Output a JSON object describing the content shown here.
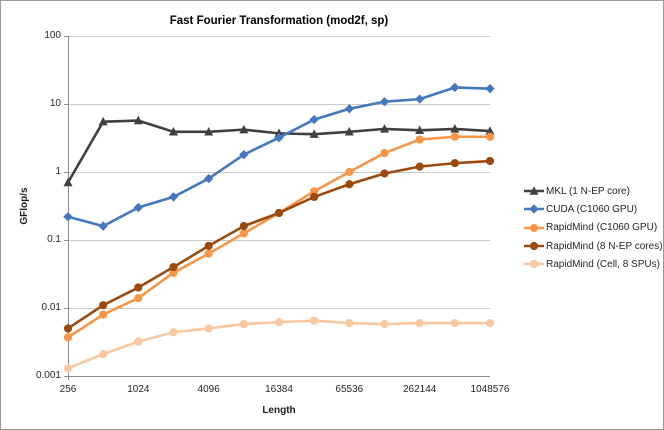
{
  "chart_data": {
    "type": "line",
    "title": "Fast Fourier Transformation (mod2f, sp)",
    "xlabel": "Length",
    "ylabel": "GFlop/s",
    "x_scale": "log2",
    "y_scale": "log10",
    "ylim": [
      0.001,
      100
    ],
    "grid": "horizontal",
    "legend_position": "right",
    "x": [
      256,
      512,
      1024,
      2048,
      4096,
      8192,
      16384,
      32768,
      65536,
      131072,
      262144,
      524288,
      1048576
    ],
    "xtick_labels": [
      "256",
      "1024",
      "4096",
      "16384",
      "65536",
      "262144",
      "1048576"
    ],
    "ytick_labels": [
      "100",
      "10",
      "1",
      "0.1",
      "0.01",
      "0.001"
    ],
    "series": [
      {
        "name": "MKL (1 N-EP core)",
        "color": "#404040",
        "marker": "triangle",
        "values": [
          0.7,
          5.5,
          5.7,
          3.9,
          3.9,
          4.2,
          3.7,
          3.6,
          3.9,
          4.3,
          4.1,
          4.3,
          4.0
        ]
      },
      {
        "name": "CUDA (C1060 GPU)",
        "color": "#4678be",
        "marker": "diamond",
        "values": [
          0.22,
          0.16,
          0.3,
          0.43,
          0.8,
          1.8,
          3.2,
          5.9,
          8.5,
          10.8,
          11.8,
          17.5,
          16.8
        ]
      },
      {
        "name": "RapidMind (C1060 GPU)",
        "color": "#f79646",
        "marker": "circle",
        "values": [
          0.0037,
          0.008,
          0.014,
          0.033,
          0.063,
          0.125,
          0.25,
          0.52,
          1.0,
          1.9,
          3.0,
          3.3,
          3.3
        ]
      },
      {
        "name": "RapidMind (8 N-EP cores)",
        "color": "#9b4a0e",
        "marker": "circle",
        "values": [
          0.005,
          0.011,
          0.02,
          0.04,
          0.082,
          0.16,
          0.25,
          0.43,
          0.66,
          0.95,
          1.2,
          1.35,
          1.45
        ]
      },
      {
        "name": "RapidMind (Cell, 8 SPUs)",
        "color": "#fac8a0",
        "marker": "circle",
        "values": [
          0.0013,
          0.0021,
          0.0032,
          0.0044,
          0.005,
          0.0058,
          0.0062,
          0.0065,
          0.006,
          0.0058,
          0.006,
          0.006,
          0.006
        ]
      }
    ]
  },
  "style": {
    "gridline_color": "#c9c9c9",
    "axis_color": "#8e8e8e"
  }
}
